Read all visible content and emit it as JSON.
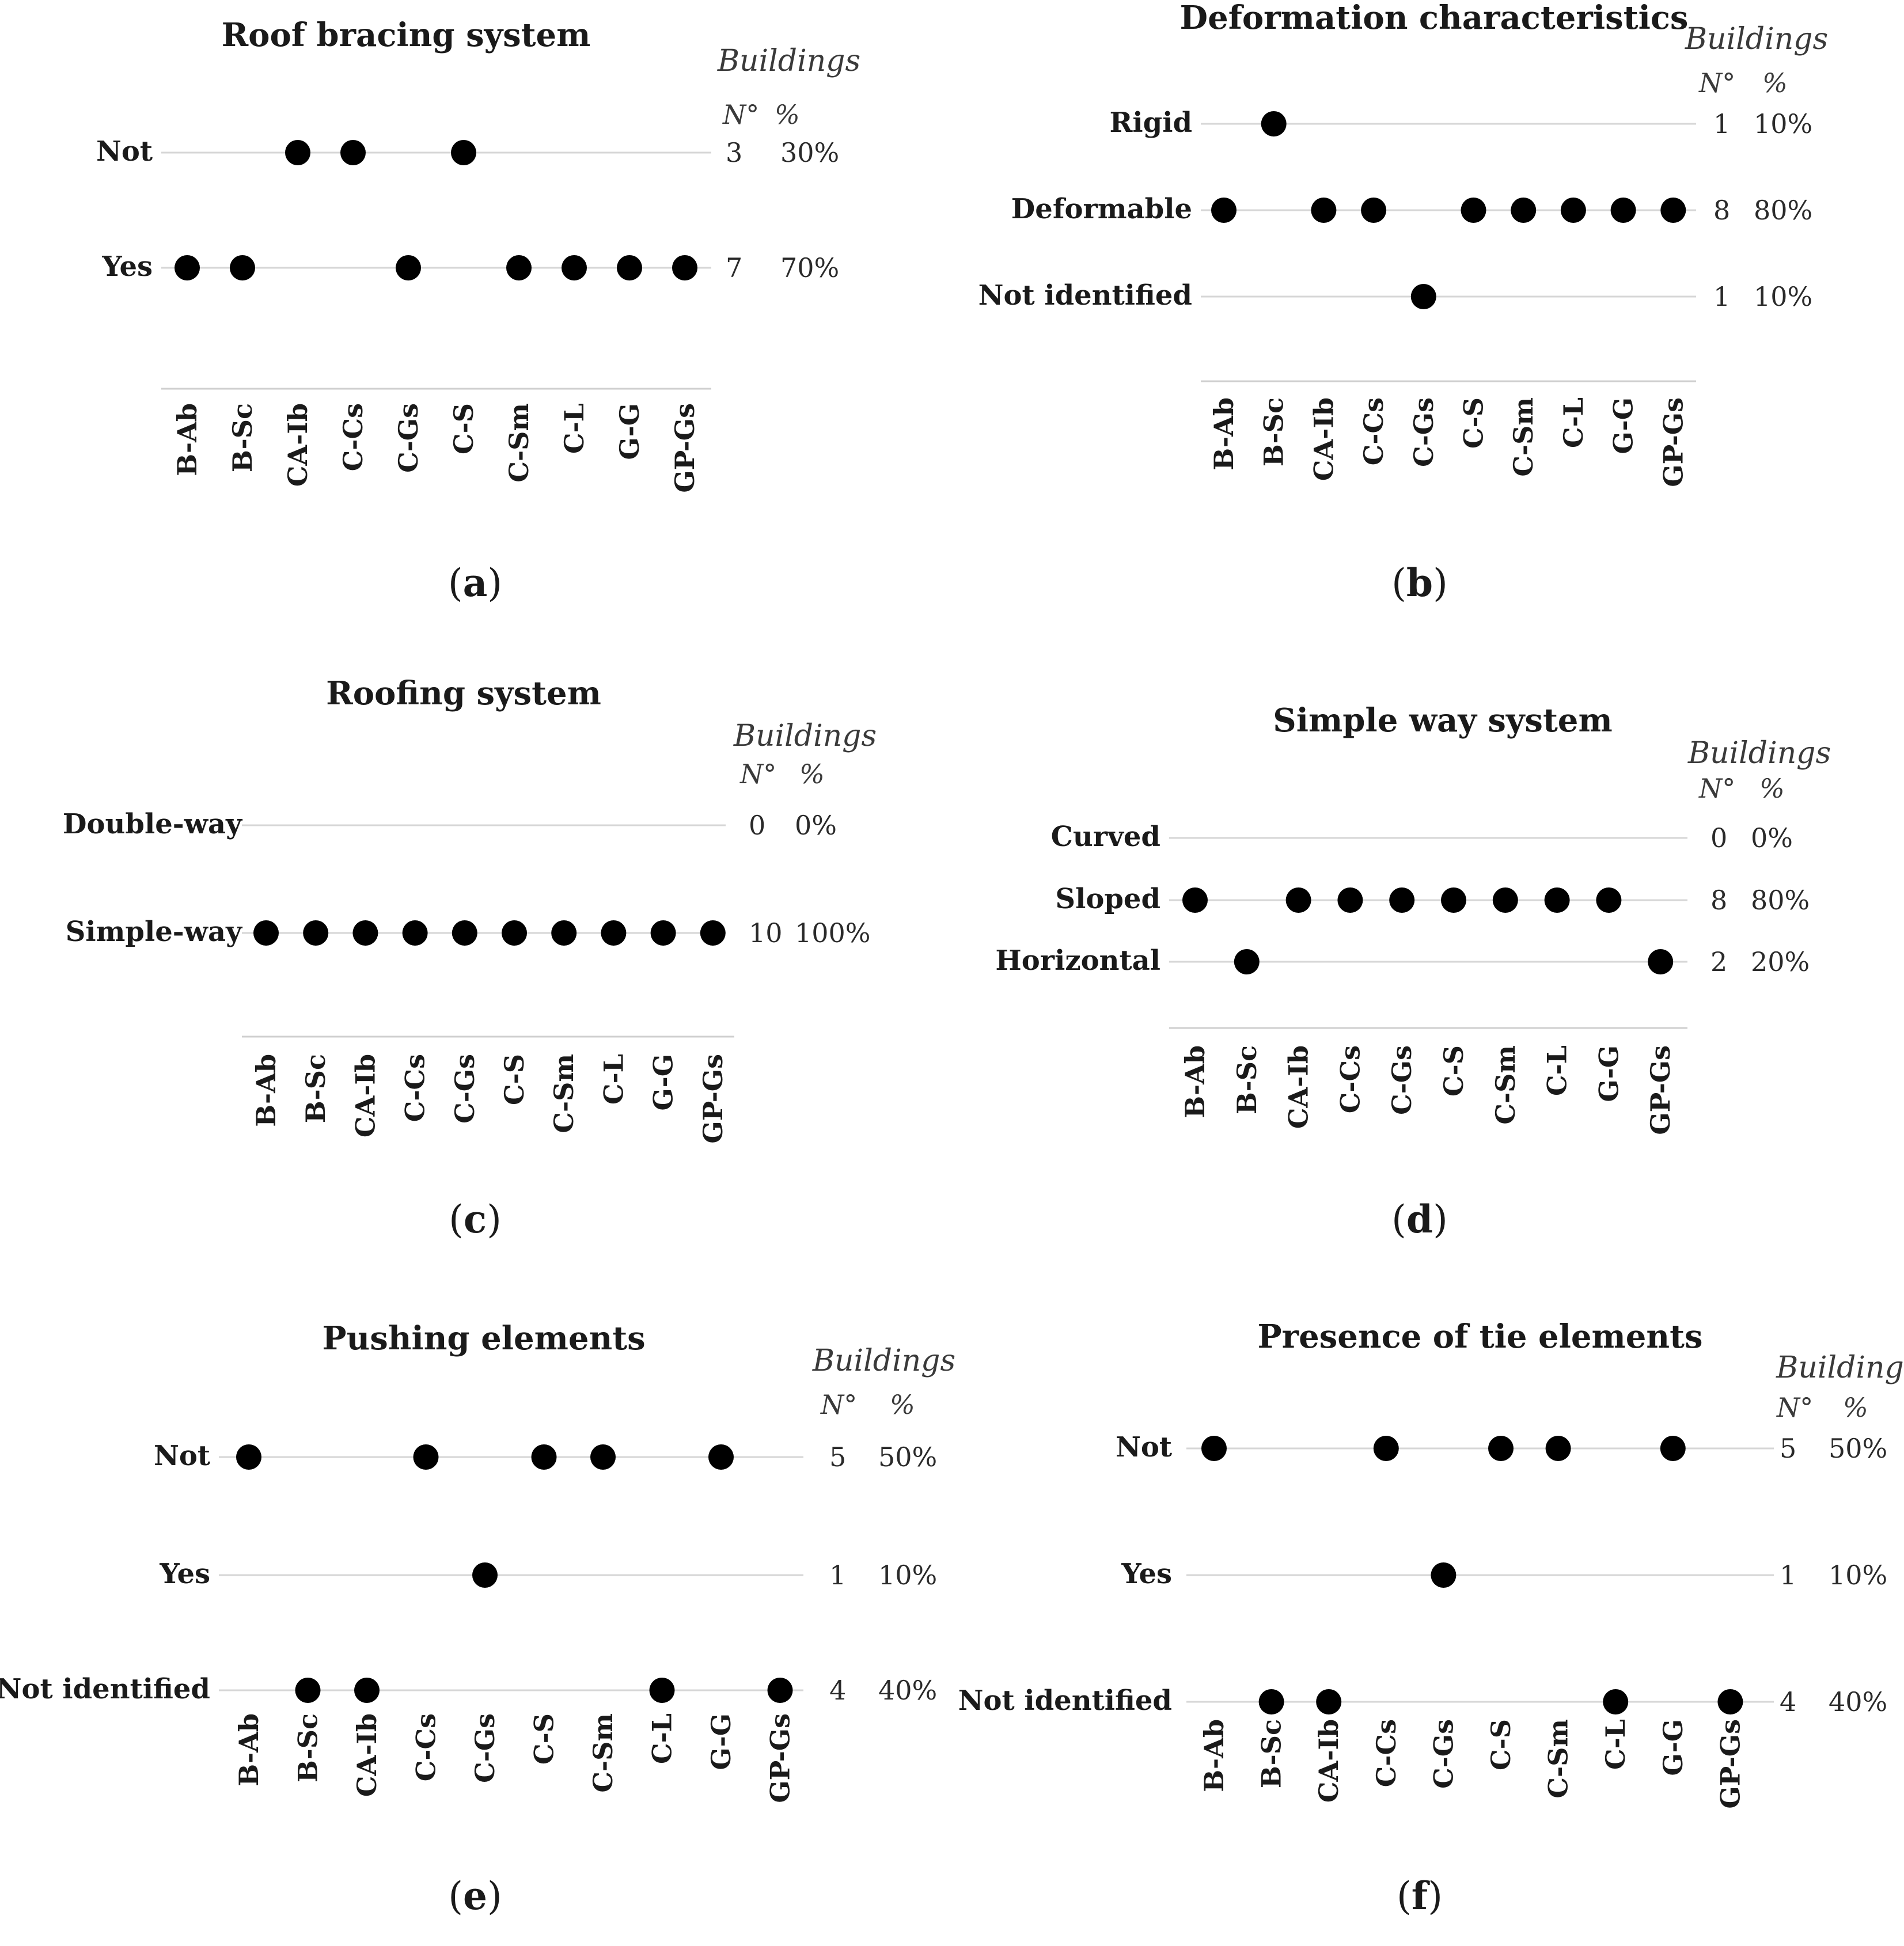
{
  "chart_data": [
    {
      "type": "scatter",
      "panel": "a",
      "title": "Roof bracing system",
      "header": "Buildings",
      "count_label": "N°",
      "percent_label": "%",
      "x": [
        "B-Ab",
        "B-Sc",
        "CA-Ib",
        "C-Cs",
        "C-Gs",
        "C-S",
        "C-Sm",
        "C-L",
        "G-G",
        "GP-Gs"
      ],
      "rows": [
        {
          "label": "Not",
          "count": "3",
          "percent": "30%",
          "points": [
            "CA-Ib",
            "C-Cs",
            "C-S"
          ]
        },
        {
          "label": "Yes",
          "count": "7",
          "percent": "70%",
          "points": [
            "B-Ab",
            "B-Sc",
            "C-Gs",
            "C-Sm",
            "C-L",
            "G-G",
            "GP-Gs"
          ]
        }
      ]
    },
    {
      "type": "scatter",
      "panel": "b",
      "title": "Deformation characteristics",
      "header": "Buildings",
      "count_label": "N°",
      "percent_label": "%",
      "x": [
        "B-Ab",
        "B-Sc",
        "CA-Ib",
        "C-Cs",
        "C-Gs",
        "C-S",
        "C-Sm",
        "C-L",
        "G-G",
        "GP-Gs"
      ],
      "rows": [
        {
          "label": "Rigid",
          "count": "1",
          "percent": "10%",
          "points": [
            "B-Sc"
          ]
        },
        {
          "label": "Deformable",
          "count": "8",
          "percent": "80%",
          "points": [
            "B-Ab",
            "CA-Ib",
            "C-Cs",
            "C-S",
            "C-Sm",
            "C-L",
            "G-G",
            "GP-Gs"
          ]
        },
        {
          "label": "Not identified",
          "count": "1",
          "percent": "10%",
          "points": [
            "C-Gs"
          ]
        }
      ]
    },
    {
      "type": "scatter",
      "panel": "c",
      "title": "Roofing system",
      "header": "Buildings",
      "count_label": "N°",
      "percent_label": "%",
      "x": [
        "B-Ab",
        "B-Sc",
        "CA-Ib",
        "C-Cs",
        "C-Gs",
        "C-S",
        "C-Sm",
        "C-L",
        "G-G",
        "GP-Gs"
      ],
      "rows": [
        {
          "label": "Double-way",
          "count": "0",
          "percent": "0%",
          "points": []
        },
        {
          "label": "Simple-way",
          "count": "10",
          "percent": "100%",
          "points": [
            "B-Ab",
            "B-Sc",
            "CA-Ib",
            "C-Cs",
            "C-Gs",
            "C-S",
            "C-Sm",
            "C-L",
            "G-G",
            "GP-Gs"
          ]
        }
      ]
    },
    {
      "type": "scatter",
      "panel": "d",
      "title": "Simple way system",
      "header": "Buildings",
      "count_label": "N°",
      "percent_label": "%",
      "x": [
        "B-Ab",
        "B-Sc",
        "CA-Ib",
        "C-Cs",
        "C-Gs",
        "C-S",
        "C-Sm",
        "C-L",
        "G-G",
        "GP-Gs"
      ],
      "rows": [
        {
          "label": "Curved",
          "count": "0",
          "percent": "0%",
          "points": []
        },
        {
          "label": "Sloped",
          "count": "8",
          "percent": "80%",
          "points": [
            "B-Ab",
            "CA-Ib",
            "C-Cs",
            "C-Gs",
            "C-S",
            "C-Sm",
            "C-L",
            "G-G"
          ]
        },
        {
          "label": "Horizontal",
          "count": "2",
          "percent": "20%",
          "points": [
            "B-Sc",
            "GP-Gs"
          ]
        }
      ]
    },
    {
      "type": "scatter",
      "panel": "e",
      "title": "Pushing elements",
      "header": "Buildings",
      "count_label": "N°",
      "percent_label": "%",
      "x": [
        "B-Ab",
        "B-Sc",
        "CA-Ib",
        "C-Cs",
        "C-Gs",
        "C-S",
        "C-Sm",
        "C-L",
        "G-G",
        "GP-Gs"
      ],
      "rows": [
        {
          "label": "Not",
          "count": "5",
          "percent": "50%",
          "points": [
            "B-Ab",
            "C-Cs",
            "C-S",
            "C-Sm",
            "G-G"
          ]
        },
        {
          "label": "Yes",
          "count": "1",
          "percent": "10%",
          "points": [
            "C-Gs"
          ]
        },
        {
          "label": "Not identified",
          "count": "4",
          "percent": "40%",
          "points": [
            "B-Sc",
            "CA-Ib",
            "C-L",
            "GP-Gs"
          ]
        }
      ]
    },
    {
      "type": "scatter",
      "panel": "f",
      "title": "Presence of tie elements",
      "header": "Building",
      "count_label": "N°",
      "percent_label": "%",
      "x": [
        "B-Ab",
        "B-Sc",
        "CA-Ib",
        "C-Cs",
        "C-Gs",
        "C-S",
        "C-Sm",
        "C-L",
        "G-G",
        "GP-Gs"
      ],
      "rows": [
        {
          "label": "Not",
          "count": "5",
          "percent": "50%",
          "points": [
            "B-Ab",
            "C-Cs",
            "C-S",
            "C-Sm",
            "G-G"
          ]
        },
        {
          "label": "Yes",
          "count": "1",
          "percent": "10%",
          "points": [
            "C-Gs"
          ]
        },
        {
          "label": "Not identified",
          "count": "4",
          "percent": "40%",
          "points": [
            "B-Sc",
            "CA-Ib",
            "C-L",
            "GP-Gs"
          ]
        }
      ]
    }
  ],
  "captions": {
    "a": {
      "open": "(",
      "letter": "a",
      "close": ")"
    },
    "b": {
      "open": "(",
      "letter": "b",
      "close": ")"
    },
    "c": {
      "open": "(",
      "letter": "c",
      "close": ")"
    },
    "d": {
      "open": "(",
      "letter": "d",
      "close": ")"
    },
    "e": {
      "open": "(",
      "letter": "e",
      "close": ")"
    },
    "f": {
      "open": "(",
      "letter": "f",
      "close": ")"
    }
  }
}
